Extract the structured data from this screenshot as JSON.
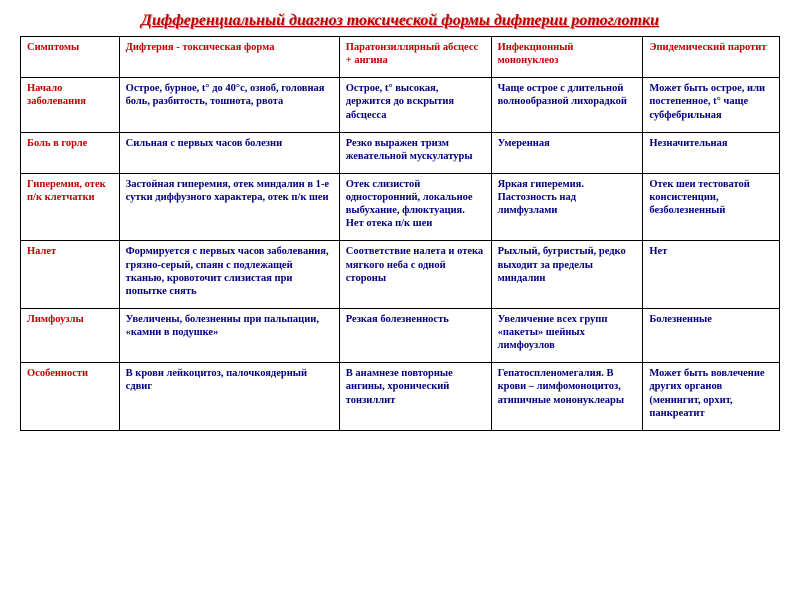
{
  "title": "Дифференциальный диагноз токсической формы дифтерии ротоглотки",
  "table": {
    "columns": [
      "Симптомы",
      "Дифтерия - токсическая форма",
      "Паратонзиллярный абсцесс + ангина",
      "Инфекционный мононуклеоз",
      "Эпидемический паротит"
    ],
    "rows": [
      [
        "Начало заболевания",
        "Острое, бурное, t° до 40°с, озноб, головная боль, разбитость, тошнота, рвота",
        "Острое, t° высокая, держится до вскрытия абсцесса",
        "Чаще острое с длительной волнообразной лихорадкой",
        "Может быть острое, или постепенное, t° чаще субфебрильная"
      ],
      [
        "Боль в горле",
        "Сильная с первых часов болезни",
        "Резко выражен тризм жевательной мускулатуры",
        "Умеренная",
        "Незначительная"
      ],
      [
        "Гиперемия, отек п/к клетчатки",
        "Застойная гиперемия, отек миндалин в 1-е сутки диффузного характера, отек п/к шеи",
        "Отек слизистой односторонний, локальное выбухание, флюктуация. Нет отека п/к шеи",
        "Яркая гиперемия. Пастозность над лимфузлами",
        "Отек шеи тестоватой консистенции, безболезненный"
      ],
      [
        "Налет",
        "Формируется с первых часов заболевания, грязно-серый, спаян с подлежащей тканью, кровоточит слизистая при попытке снять",
        "Соответствие налета и отека мягкого неба с одной стороны",
        "Рыхлый, бугристый, редко выходит за пределы миндалин",
        "Нет"
      ],
      [
        "Лимфоузлы",
        "Увеличены, болезненны при пальпации, «камни в подушке»",
        "Резкая болезненность",
        "Увеличение всех групп «пакеты» шейных лимфоузлов",
        "Болезненные"
      ],
      [
        "Особенности",
        "В крови лейкоцитоз, палочкоядерный сдвиг",
        "В анамнезе повторные ангины, хронический тонзиллит",
        "Гепатоспленомегалия. В крови – лимфомоноцитоз, атипичные мононуклеары",
        "Может быть вовлечение других органов (менингит, орхит, панкреатит"
      ]
    ],
    "colors": {
      "header_text": "#c00000",
      "rowheader_text": "#c00000",
      "cell_text": "#000080",
      "border": "#000000",
      "background": "#ffffff"
    },
    "fonts": {
      "title_size_pt": 16,
      "title_style": "bold italic underline",
      "cell_size_pt": 10.5,
      "family": "Times New Roman"
    },
    "col_widths_pct": [
      13,
      29,
      20,
      20,
      18
    ]
  }
}
